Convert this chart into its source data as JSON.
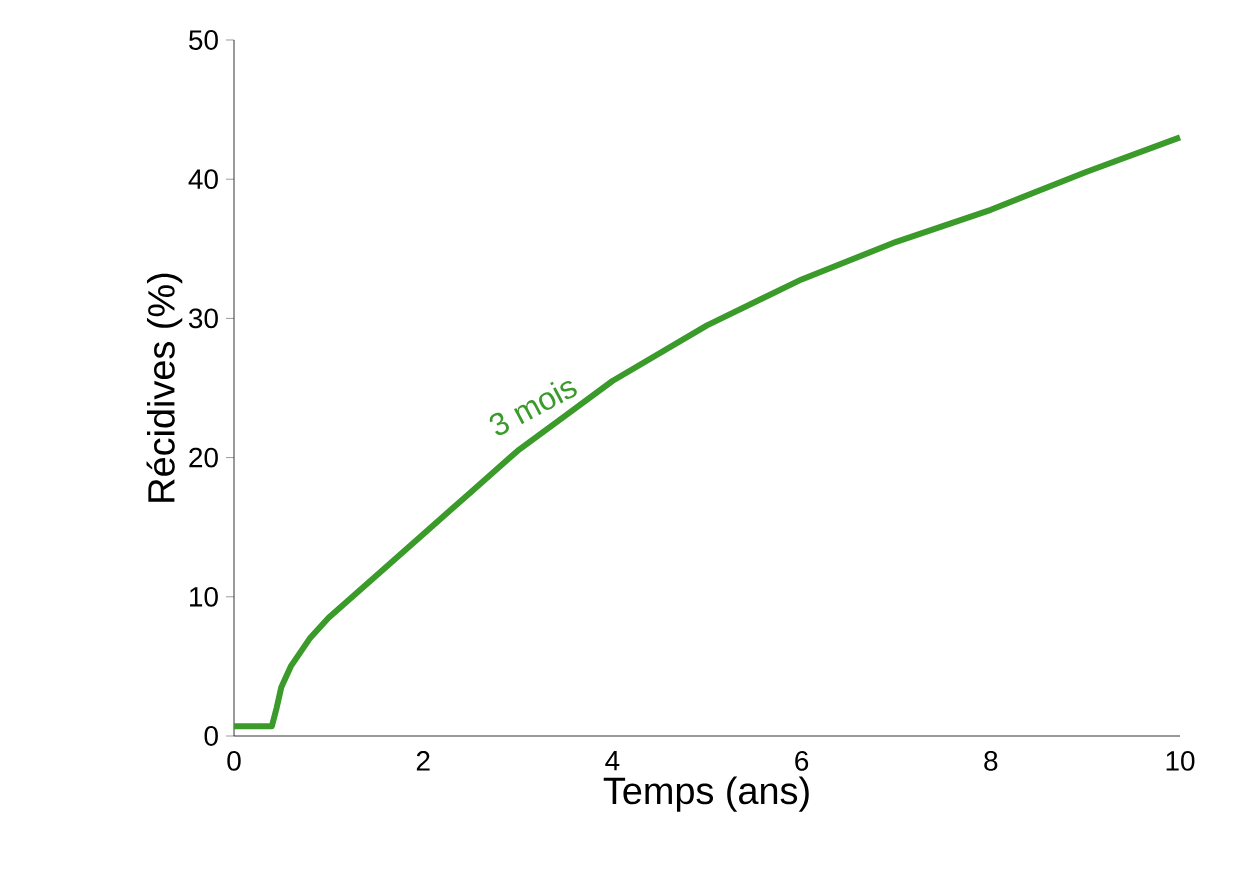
{
  "chart_data": {
    "type": "line",
    "xlabel": "Temps (ans)",
    "ylabel": "Récidives (%)",
    "series": [
      {
        "name": "3 mois",
        "color": "#3a9a2a",
        "x": [
          0,
          0.4,
          0.45,
          0.5,
          0.6,
          0.8,
          1,
          1.5,
          2,
          2.5,
          3,
          3.5,
          4,
          5,
          6,
          7,
          8,
          9,
          10
        ],
        "values": [
          0.7,
          0.7,
          2,
          3.5,
          5,
          7,
          8.5,
          11.5,
          14.5,
          17.5,
          20.5,
          23,
          25.5,
          29.5,
          32.8,
          35.5,
          37.8,
          40.5,
          43
        ]
      }
    ],
    "xlim": [
      0,
      10
    ],
    "ylim": [
      0,
      50
    ],
    "xticks": [
      0,
      2,
      4,
      6,
      8,
      10
    ],
    "yticks": [
      0,
      10,
      20,
      30,
      40,
      50
    ],
    "grid": false,
    "legend": false,
    "marker": "none",
    "line_style": "solid"
  }
}
